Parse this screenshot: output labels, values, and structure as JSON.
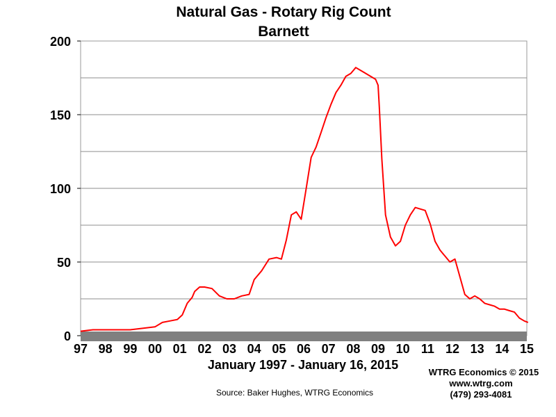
{
  "chart_data": {
    "type": "line",
    "title": "Natural Gas - Rotary Rig Count",
    "subtitle": "Barnett",
    "xlabel": "January 1997 - January 16, 2015",
    "ylabel": "",
    "ylim": [
      0,
      200
    ],
    "xlim": [
      1997,
      2015
    ],
    "yticks": [
      0,
      50,
      100,
      150,
      200
    ],
    "xtick_labels": [
      "97",
      "98",
      "99",
      "00",
      "01",
      "02",
      "03",
      "04",
      "05",
      "06",
      "07",
      "08",
      "09",
      "10",
      "11",
      "12",
      "13",
      "14",
      "15"
    ],
    "grid": true,
    "legend": "none",
    "series": [
      {
        "color": "#ff0000",
        "x": [
          1997.0,
          1997.5,
          1998.0,
          1998.5,
          1999.0,
          1999.5,
          2000.0,
          2000.3,
          2000.6,
          2000.9,
          2001.1,
          2001.3,
          2001.5,
          2001.6,
          2001.8,
          2002.0,
          2002.3,
          2002.6,
          2002.9,
          2003.2,
          2003.5,
          2003.8,
          2004.0,
          2004.3,
          2004.6,
          2004.9,
          2005.1,
          2005.3,
          2005.5,
          2005.7,
          2005.9,
          2006.1,
          2006.3,
          2006.5,
          2006.7,
          2006.9,
          2007.1,
          2007.3,
          2007.5,
          2007.7,
          2007.9,
          2008.1,
          2008.3,
          2008.5,
          2008.7,
          2008.9,
          2009.0,
          2009.05,
          2009.15,
          2009.3,
          2009.5,
          2009.7,
          2009.9,
          2010.1,
          2010.3,
          2010.5,
          2010.7,
          2010.9,
          2011.1,
          2011.3,
          2011.5,
          2011.7,
          2011.9,
          2012.1,
          2012.3,
          2012.5,
          2012.7,
          2012.9,
          2013.1,
          2013.3,
          2013.5,
          2013.7,
          2013.9,
          2014.1,
          2014.3,
          2014.5,
          2014.7,
          2014.9,
          2015.05
        ],
        "values": [
          3,
          4,
          4,
          4,
          4,
          5,
          6,
          9,
          10,
          11,
          14,
          22,
          26,
          30,
          33,
          33,
          32,
          27,
          25,
          25,
          27,
          28,
          38,
          44,
          52,
          53,
          52,
          65,
          82,
          84,
          79,
          100,
          121,
          128,
          138,
          148,
          157,
          165,
          170,
          176,
          178,
          182,
          180,
          178,
          176,
          174,
          170,
          155,
          120,
          82,
          67,
          61,
          64,
          75,
          82,
          87,
          86,
          85,
          76,
          64,
          58,
          54,
          50,
          52,
          40,
          28,
          25,
          27,
          25,
          22,
          21,
          20,
          18,
          18,
          17,
          16,
          12,
          10,
          9
        ]
      }
    ]
  },
  "footer": {
    "source": "Source: Baker Hughes, WTRG Economics",
    "credit_line1": "WTRG Economics © 2015",
    "credit_line2": "www.wtrg.com",
    "credit_line3": "(479) 293-4081"
  },
  "colors": {
    "line": "#ff0000",
    "grid": "#8c8c8c",
    "baseline_band": "#808080"
  }
}
